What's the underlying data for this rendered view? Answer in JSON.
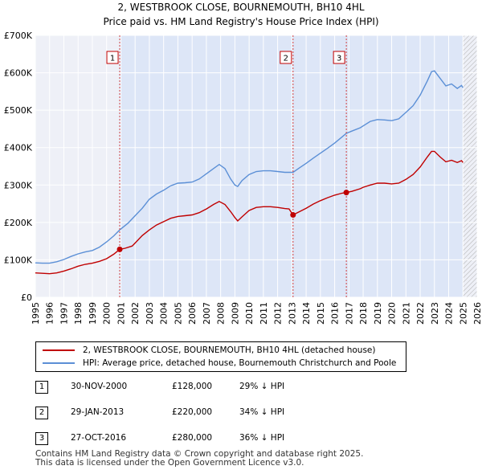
{
  "chart_data": {
    "type": "line",
    "title_line1": "2, WESTBROOK CLOSE, BOURNEMOUTH, BH10 4HL",
    "title_line2": "Price paid vs. HM Land Registry's House Price Index (HPI)",
    "xlim": [
      1995,
      2026
    ],
    "ylim": [
      0,
      700000
    ],
    "x_ticks": [
      1995,
      1996,
      1997,
      1998,
      1999,
      2000,
      2001,
      2002,
      2003,
      2004,
      2005,
      2006,
      2007,
      2008,
      2009,
      2010,
      2011,
      2012,
      2013,
      2014,
      2015,
      2016,
      2017,
      2018,
      2019,
      2020,
      2021,
      2022,
      2023,
      2024,
      2025,
      2026
    ],
    "y_ticks": [
      {
        "value": 0,
        "label": "£0"
      },
      {
        "value": 100000,
        "label": "£100K"
      },
      {
        "value": 200000,
        "label": "£200K"
      },
      {
        "value": 300000,
        "label": "£300K"
      },
      {
        "value": 400000,
        "label": "£400K"
      },
      {
        "value": 500000,
        "label": "£500K"
      },
      {
        "value": 600000,
        "label": "£600K"
      },
      {
        "value": 700000,
        "label": "£700K"
      }
    ],
    "shaded_region": {
      "from": 2000.92,
      "to": 2025.0,
      "color": "#dde6f7"
    },
    "hatched_region": {
      "from": 2025.0,
      "to": 2026.0
    },
    "series": [
      {
        "name": "2, WESTBROOK CLOSE, BOURNEMOUTH, BH10 4HL (detached house)",
        "color": "#c00000",
        "points": [
          [
            1995.0,
            65000
          ],
          [
            1995.5,
            64000
          ],
          [
            1996.0,
            63000
          ],
          [
            1996.5,
            65000
          ],
          [
            1997.0,
            70000
          ],
          [
            1997.5,
            76000
          ],
          [
            1998.0,
            83000
          ],
          [
            1998.5,
            88000
          ],
          [
            1999.0,
            91000
          ],
          [
            1999.5,
            96000
          ],
          [
            2000.0,
            103000
          ],
          [
            2000.5,
            115000
          ],
          [
            2000.92,
            128000
          ],
          [
            2001.3,
            131000
          ],
          [
            2001.8,
            137000
          ],
          [
            2002.0,
            145000
          ],
          [
            2002.5,
            165000
          ],
          [
            2003.0,
            180000
          ],
          [
            2003.5,
            193000
          ],
          [
            2004.0,
            202000
          ],
          [
            2004.5,
            211000
          ],
          [
            2005.0,
            216000
          ],
          [
            2005.5,
            218000
          ],
          [
            2006.0,
            220000
          ],
          [
            2006.5,
            226000
          ],
          [
            2007.0,
            236000
          ],
          [
            2007.5,
            248000
          ],
          [
            2007.9,
            256000
          ],
          [
            2008.3,
            248000
          ],
          [
            2008.7,
            229000
          ],
          [
            2009.0,
            213000
          ],
          [
            2009.2,
            204000
          ],
          [
            2009.5,
            215000
          ],
          [
            2010.0,
            232000
          ],
          [
            2010.5,
            240000
          ],
          [
            2011.0,
            242000
          ],
          [
            2011.5,
            242000
          ],
          [
            2012.0,
            240000
          ],
          [
            2012.5,
            237000
          ],
          [
            2012.8,
            236000
          ],
          [
            2013.08,
            220000
          ],
          [
            2013.5,
            228000
          ],
          [
            2014.0,
            238000
          ],
          [
            2014.5,
            249000
          ],
          [
            2015.0,
            258000
          ],
          [
            2015.5,
            266000
          ],
          [
            2016.0,
            273000
          ],
          [
            2016.5,
            278000
          ],
          [
            2016.82,
            280000
          ],
          [
            2017.2,
            283000
          ],
          [
            2017.8,
            290000
          ],
          [
            2018.0,
            294000
          ],
          [
            2018.5,
            300000
          ],
          [
            2019.0,
            305000
          ],
          [
            2019.5,
            305000
          ],
          [
            2020.0,
            303000
          ],
          [
            2020.5,
            305000
          ],
          [
            2021.0,
            315000
          ],
          [
            2021.5,
            328000
          ],
          [
            2022.0,
            348000
          ],
          [
            2022.5,
            375000
          ],
          [
            2022.8,
            390000
          ],
          [
            2023.0,
            390000
          ],
          [
            2023.4,
            375000
          ],
          [
            2023.8,
            362000
          ],
          [
            2024.2,
            366000
          ],
          [
            2024.6,
            360000
          ],
          [
            2024.9,
            365000
          ],
          [
            2025.0,
            360000
          ]
        ]
      },
      {
        "name": "HPI: Average price, detached house, Bournemouth Christchurch and Poole",
        "color": "#5b8fd6",
        "points": [
          [
            1995.0,
            92000
          ],
          [
            1995.5,
            91000
          ],
          [
            1996.0,
            91000
          ],
          [
            1996.5,
            95000
          ],
          [
            1997.0,
            101000
          ],
          [
            1997.5,
            109000
          ],
          [
            1998.0,
            116000
          ],
          [
            1998.5,
            121000
          ],
          [
            1999.0,
            125000
          ],
          [
            1999.5,
            134000
          ],
          [
            2000.0,
            148000
          ],
          [
            2000.5,
            164000
          ],
          [
            2000.92,
            180000
          ],
          [
            2001.5,
            198000
          ],
          [
            2002.0,
            218000
          ],
          [
            2002.5,
            238000
          ],
          [
            2003.0,
            262000
          ],
          [
            2003.5,
            276000
          ],
          [
            2004.0,
            286000
          ],
          [
            2004.5,
            298000
          ],
          [
            2005.0,
            305000
          ],
          [
            2005.5,
            306000
          ],
          [
            2006.0,
            308000
          ],
          [
            2006.5,
            316000
          ],
          [
            2007.0,
            330000
          ],
          [
            2007.5,
            344000
          ],
          [
            2007.9,
            355000
          ],
          [
            2008.3,
            344000
          ],
          [
            2008.7,
            316000
          ],
          [
            2009.0,
            300000
          ],
          [
            2009.2,
            296000
          ],
          [
            2009.5,
            312000
          ],
          [
            2010.0,
            328000
          ],
          [
            2010.5,
            336000
          ],
          [
            2011.0,
            338000
          ],
          [
            2011.5,
            338000
          ],
          [
            2012.0,
            336000
          ],
          [
            2012.5,
            334000
          ],
          [
            2013.08,
            334000
          ],
          [
            2013.5,
            345000
          ],
          [
            2014.0,
            358000
          ],
          [
            2014.5,
            372000
          ],
          [
            2015.0,
            385000
          ],
          [
            2015.5,
            398000
          ],
          [
            2016.0,
            412000
          ],
          [
            2016.5,
            428000
          ],
          [
            2016.82,
            438000
          ],
          [
            2017.2,
            444000
          ],
          [
            2017.8,
            453000
          ],
          [
            2018.0,
            458000
          ],
          [
            2018.5,
            470000
          ],
          [
            2019.0,
            475000
          ],
          [
            2019.5,
            474000
          ],
          [
            2020.0,
            472000
          ],
          [
            2020.5,
            477000
          ],
          [
            2021.0,
            494000
          ],
          [
            2021.5,
            512000
          ],
          [
            2022.0,
            540000
          ],
          [
            2022.5,
            578000
          ],
          [
            2022.8,
            603000
          ],
          [
            2023.0,
            605000
          ],
          [
            2023.4,
            585000
          ],
          [
            2023.8,
            565000
          ],
          [
            2024.2,
            570000
          ],
          [
            2024.6,
            558000
          ],
          [
            2024.9,
            566000
          ],
          [
            2025.0,
            560000
          ]
        ]
      }
    ],
    "sales": [
      {
        "label": "1",
        "x": 2000.92,
        "price": 128000,
        "date": "30-NOV-2000",
        "price_text": "£128,000",
        "hpi_text": "29% ↓ HPI"
      },
      {
        "label": "2",
        "x": 2013.08,
        "price": 220000,
        "date": "29-JAN-2013",
        "price_text": "£220,000",
        "hpi_text": "34% ↓ HPI"
      },
      {
        "label": "3",
        "x": 2016.82,
        "price": 280000,
        "date": "27-OCT-2016",
        "price_text": "£280,000",
        "hpi_text": "36% ↓ HPI"
      }
    ]
  },
  "legend": {
    "red_label": "2, WESTBROOK CLOSE, BOURNEMOUTH, BH10 4HL (detached house)",
    "blue_label": "HPI: Average price, detached house, Bournemouth Christchurch and Poole"
  },
  "footer": {
    "line1": "Contains HM Land Registry data © Crown copyright and database right 2025.",
    "line2": "This data is licensed under the Open Government Licence v3.0."
  },
  "colors": {
    "red": "#c00000",
    "blue": "#5b8fd6",
    "shade": "#dde6f7",
    "grid": "#ffffff"
  }
}
